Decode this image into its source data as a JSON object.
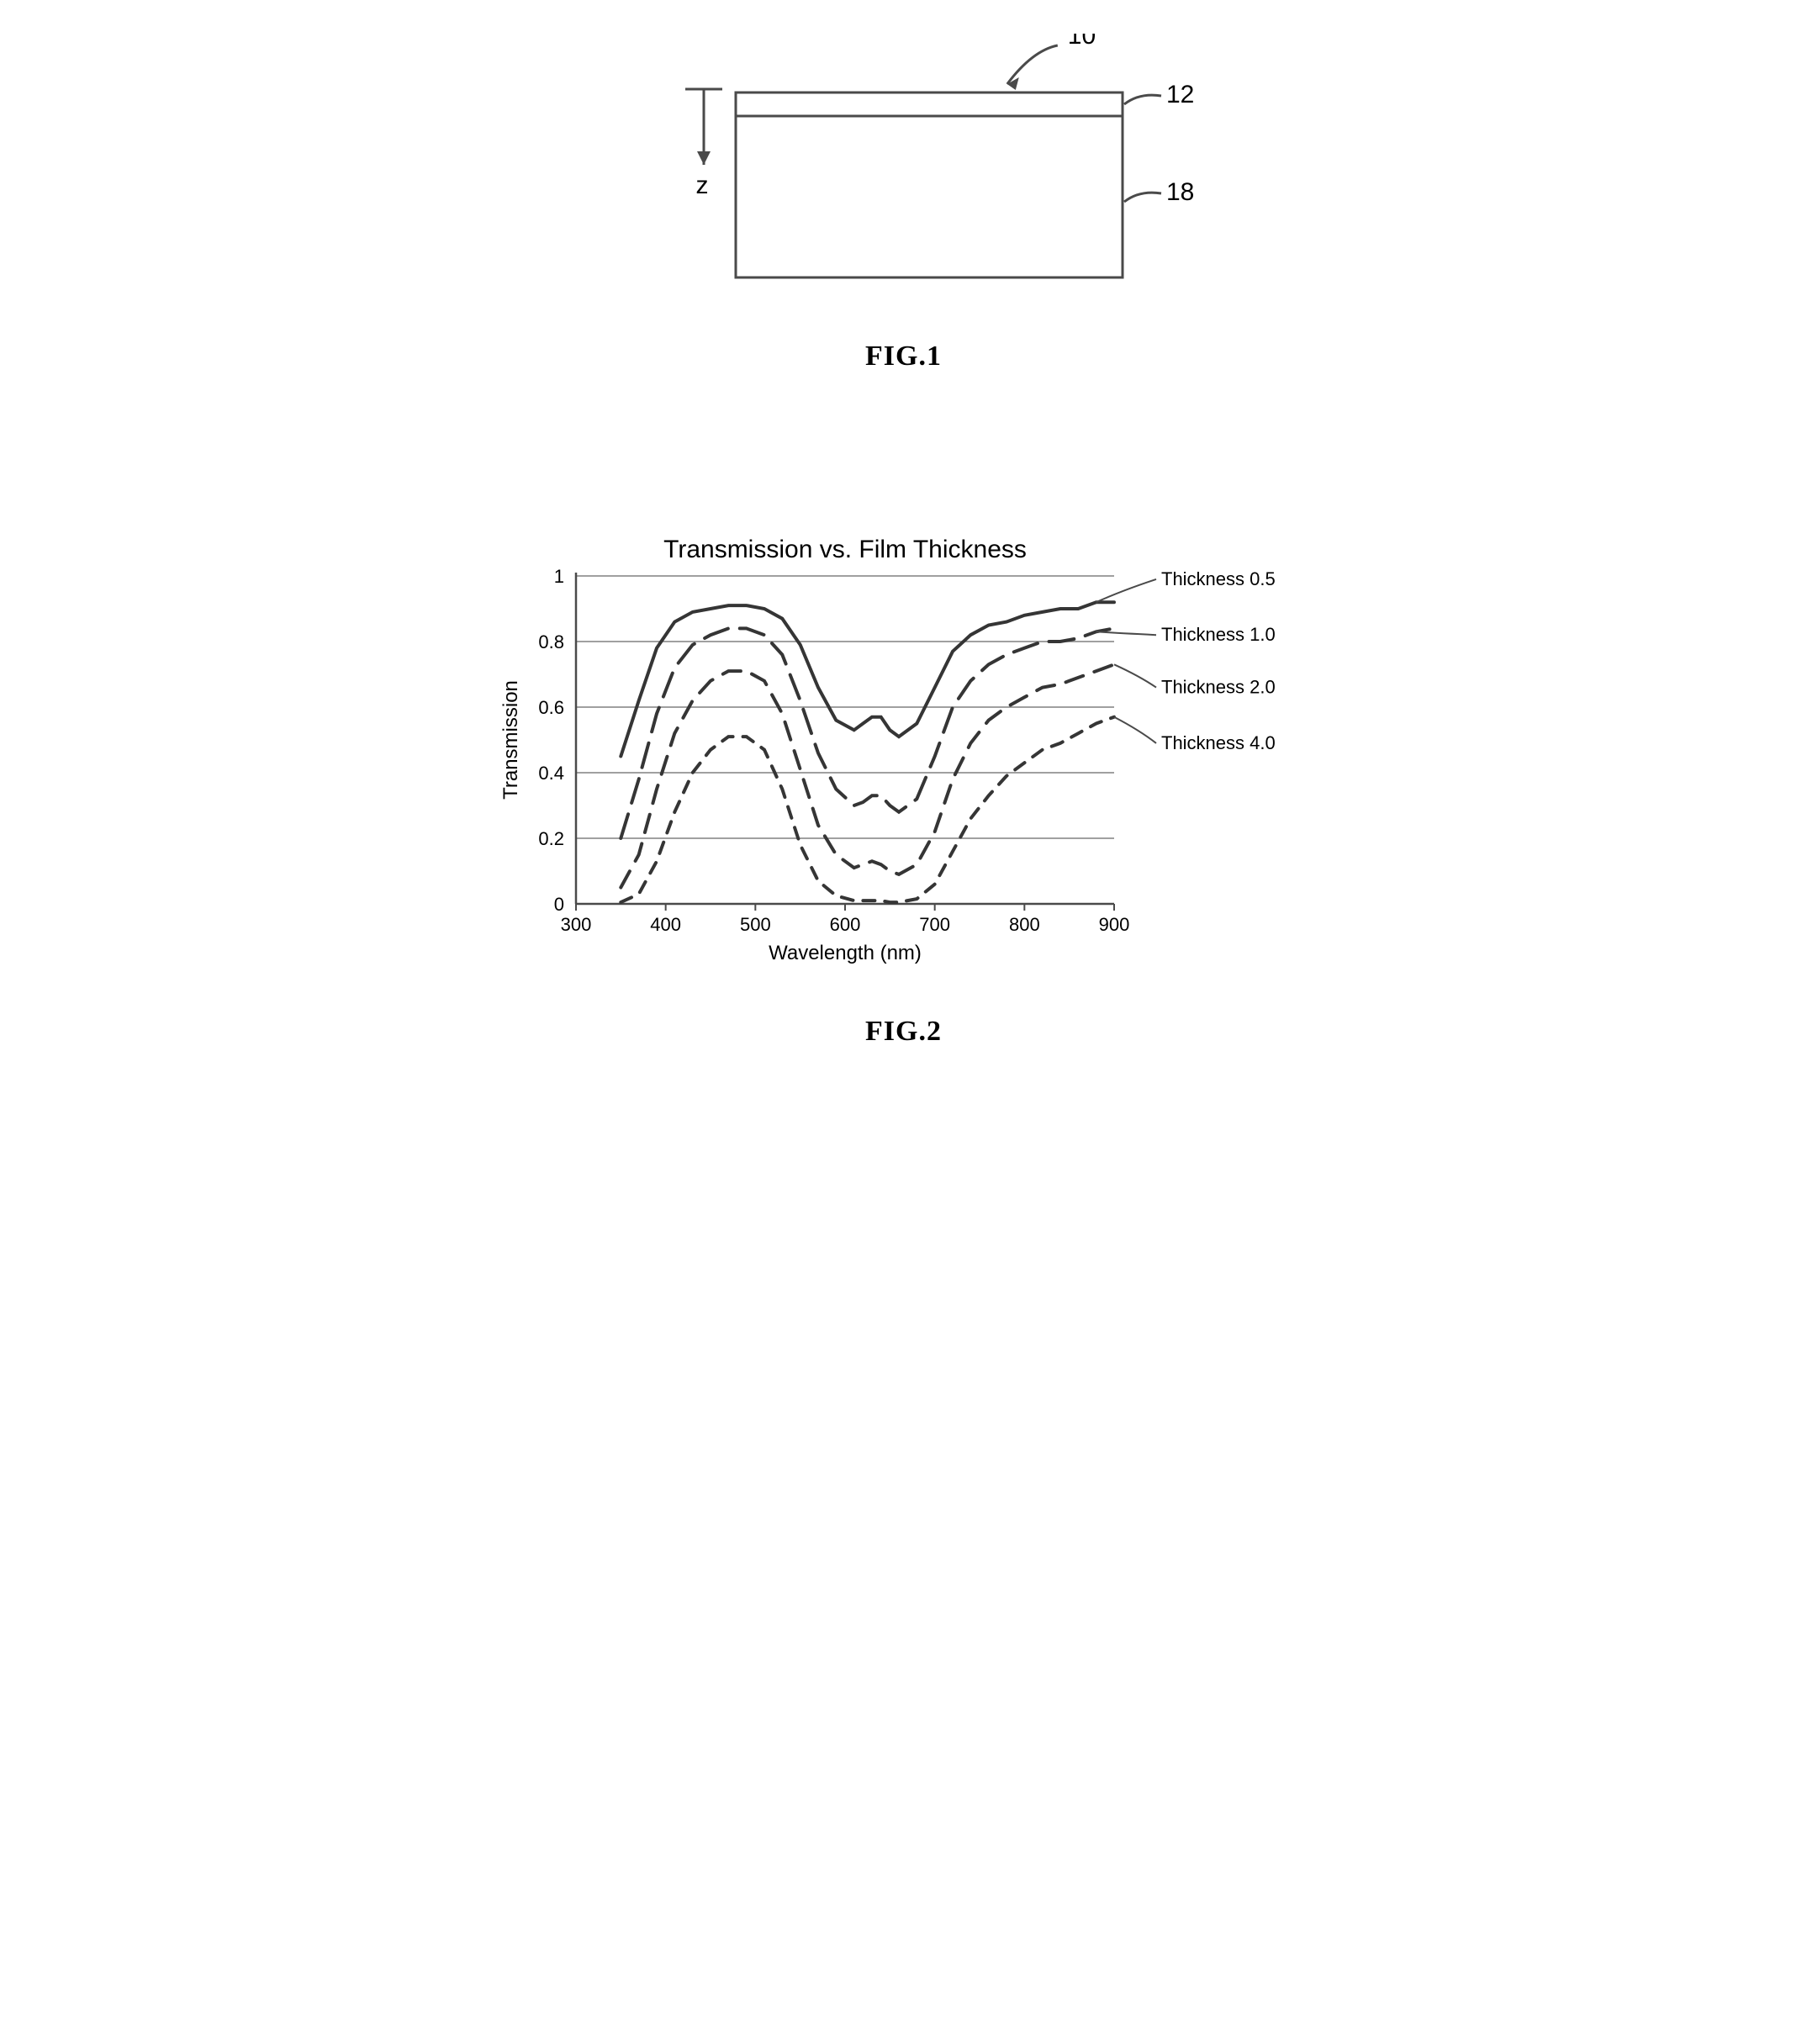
{
  "fig1": {
    "caption": "FIG.1",
    "labels": {
      "assembly": "10",
      "top_layer": "12",
      "body": "18",
      "axis": "z"
    },
    "stroke": "#4a4a4a",
    "stroke_width": 3
  },
  "fig2": {
    "caption": "FIG.2",
    "title": "Transmission vs. Film Thickness",
    "xlabel": "Wavelength (nm)",
    "ylabel": "Transmission",
    "xlim": [
      300,
      900
    ],
    "ylim": [
      0,
      1
    ],
    "xticks": [
      300,
      400,
      500,
      600,
      700,
      800,
      900
    ],
    "yticks": [
      0,
      0.2,
      0.4,
      0.6,
      0.8,
      1
    ],
    "grid_color": "#808080",
    "axis_color": "#4a4a4a",
    "line_color": "#353535",
    "series": [
      {
        "name": "Thickness 0.5",
        "dash": "",
        "width": 4,
        "points": [
          [
            350,
            0.45
          ],
          [
            370,
            0.62
          ],
          [
            390,
            0.78
          ],
          [
            410,
            0.86
          ],
          [
            430,
            0.89
          ],
          [
            450,
            0.9
          ],
          [
            470,
            0.91
          ],
          [
            490,
            0.91
          ],
          [
            510,
            0.9
          ],
          [
            530,
            0.87
          ],
          [
            550,
            0.79
          ],
          [
            570,
            0.66
          ],
          [
            590,
            0.56
          ],
          [
            610,
            0.53
          ],
          [
            620,
            0.55
          ],
          [
            630,
            0.57
          ],
          [
            640,
            0.57
          ],
          [
            650,
            0.53
          ],
          [
            660,
            0.51
          ],
          [
            680,
            0.55
          ],
          [
            700,
            0.66
          ],
          [
            720,
            0.77
          ],
          [
            740,
            0.82
          ],
          [
            760,
            0.85
          ],
          [
            780,
            0.86
          ],
          [
            800,
            0.88
          ],
          [
            820,
            0.89
          ],
          [
            840,
            0.9
          ],
          [
            860,
            0.9
          ],
          [
            880,
            0.92
          ],
          [
            900,
            0.92
          ]
        ]
      },
      {
        "name": "Thickness 1.0",
        "dash": "30 14",
        "width": 4,
        "points": [
          [
            350,
            0.2
          ],
          [
            370,
            0.38
          ],
          [
            390,
            0.58
          ],
          [
            410,
            0.72
          ],
          [
            430,
            0.79
          ],
          [
            450,
            0.82
          ],
          [
            470,
            0.84
          ],
          [
            490,
            0.84
          ],
          [
            510,
            0.82
          ],
          [
            530,
            0.76
          ],
          [
            550,
            0.62
          ],
          [
            570,
            0.46
          ],
          [
            590,
            0.35
          ],
          [
            610,
            0.3
          ],
          [
            620,
            0.31
          ],
          [
            630,
            0.33
          ],
          [
            640,
            0.33
          ],
          [
            650,
            0.3
          ],
          [
            660,
            0.28
          ],
          [
            680,
            0.32
          ],
          [
            700,
            0.45
          ],
          [
            720,
            0.6
          ],
          [
            740,
            0.68
          ],
          [
            760,
            0.73
          ],
          [
            780,
            0.76
          ],
          [
            800,
            0.78
          ],
          [
            820,
            0.8
          ],
          [
            840,
            0.8
          ],
          [
            860,
            0.81
          ],
          [
            880,
            0.83
          ],
          [
            900,
            0.84
          ]
        ]
      },
      {
        "name": "Thickness 2.0",
        "dash": "22 14",
        "width": 4,
        "points": [
          [
            350,
            0.05
          ],
          [
            370,
            0.15
          ],
          [
            390,
            0.35
          ],
          [
            410,
            0.52
          ],
          [
            430,
            0.62
          ],
          [
            450,
            0.68
          ],
          [
            470,
            0.71
          ],
          [
            490,
            0.71
          ],
          [
            510,
            0.68
          ],
          [
            530,
            0.58
          ],
          [
            550,
            0.41
          ],
          [
            570,
            0.24
          ],
          [
            590,
            0.15
          ],
          [
            610,
            0.11
          ],
          [
            620,
            0.12
          ],
          [
            630,
            0.13
          ],
          [
            640,
            0.12
          ],
          [
            650,
            0.1
          ],
          [
            660,
            0.09
          ],
          [
            680,
            0.12
          ],
          [
            700,
            0.22
          ],
          [
            720,
            0.38
          ],
          [
            740,
            0.49
          ],
          [
            760,
            0.56
          ],
          [
            780,
            0.6
          ],
          [
            800,
            0.63
          ],
          [
            820,
            0.66
          ],
          [
            840,
            0.67
          ],
          [
            860,
            0.69
          ],
          [
            880,
            0.71
          ],
          [
            900,
            0.73
          ]
        ]
      },
      {
        "name": "Thickness 4.0",
        "dash": "14 12",
        "width": 4,
        "points": [
          [
            350,
            0.005
          ],
          [
            370,
            0.03
          ],
          [
            390,
            0.13
          ],
          [
            410,
            0.28
          ],
          [
            430,
            0.4
          ],
          [
            450,
            0.47
          ],
          [
            470,
            0.51
          ],
          [
            490,
            0.51
          ],
          [
            510,
            0.47
          ],
          [
            530,
            0.35
          ],
          [
            550,
            0.18
          ],
          [
            570,
            0.07
          ],
          [
            590,
            0.025
          ],
          [
            610,
            0.01
          ],
          [
            620,
            0.01
          ],
          [
            630,
            0.01
          ],
          [
            640,
            0.01
          ],
          [
            650,
            0.005
          ],
          [
            660,
            0.005
          ],
          [
            680,
            0.015
          ],
          [
            700,
            0.06
          ],
          [
            720,
            0.16
          ],
          [
            740,
            0.26
          ],
          [
            760,
            0.33
          ],
          [
            780,
            0.39
          ],
          [
            800,
            0.43
          ],
          [
            820,
            0.47
          ],
          [
            840,
            0.49
          ],
          [
            860,
            0.52
          ],
          [
            880,
            0.55
          ],
          [
            900,
            0.57
          ]
        ]
      }
    ],
    "legend_leaders": [
      {
        "series": 0,
        "at_x": 882,
        "to": [
          960,
          0.99
        ]
      },
      {
        "series": 1,
        "at_x": 890,
        "to": [
          960,
          0.82
        ]
      },
      {
        "series": 2,
        "at_x": 892,
        "to": [
          960,
          0.66
        ]
      },
      {
        "series": 3,
        "at_x": 895,
        "to": [
          960,
          0.49
        ]
      }
    ]
  }
}
